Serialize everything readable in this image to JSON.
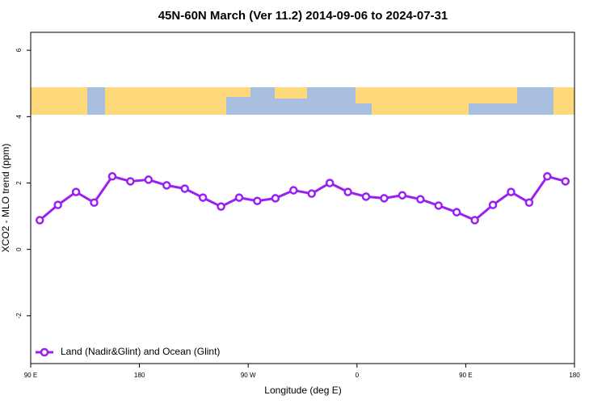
{
  "chart_data": {
    "type": "line",
    "title": "45N-60N March (Ver 11.2)   2014-09-06 to 2024-07-31",
    "xlabel": "Longitude (deg E)",
    "ylabel": "XCO2 - MLO trend (ppm)",
    "x": [
      97.5,
      112.5,
      127.5,
      142.5,
      157.5,
      172.5,
      187.5,
      202.5,
      217.5,
      232.5,
      247.5,
      262.5,
      277.5,
      292.5,
      307.5,
      322.5,
      337.5,
      352.5,
      367.5,
      382.5,
      397.5,
      412.5,
      427.5,
      442.5,
      457.5,
      472.5,
      487.5,
      502.5,
      517.5,
      532.5
    ],
    "series": [
      {
        "name": "Land (Nadir&Glint) and Ocean (Glint)",
        "color": "#9a1ff0",
        "values": [
          0.88,
          1.34,
          1.73,
          1.41,
          2.2,
          2.05,
          2.1,
          1.93,
          1.83,
          1.56,
          1.29,
          1.56,
          1.46,
          1.54,
          1.78,
          1.68,
          2.0,
          1.73,
          1.59,
          1.54,
          1.63,
          1.51,
          1.32,
          1.12,
          0.88,
          1.34,
          1.73,
          1.41,
          2.2,
          2.05
        ]
      }
    ],
    "xlim": [
      90,
      540
    ],
    "xticks": [
      {
        "value": 90,
        "label": "90 E"
      },
      180,
      {
        "value": 270,
        "label": "90 W"
      },
      {
        "value": 360,
        "label": "0"
      },
      {
        "value": 450,
        "label": "90 E"
      },
      {
        "value": 540,
        "label": "180"
      }
    ],
    "ylim": [
      -3.44,
      6.54
    ],
    "yticks": [
      -2,
      0,
      2,
      4,
      6
    ],
    "legend": "bottom-left"
  }
}
